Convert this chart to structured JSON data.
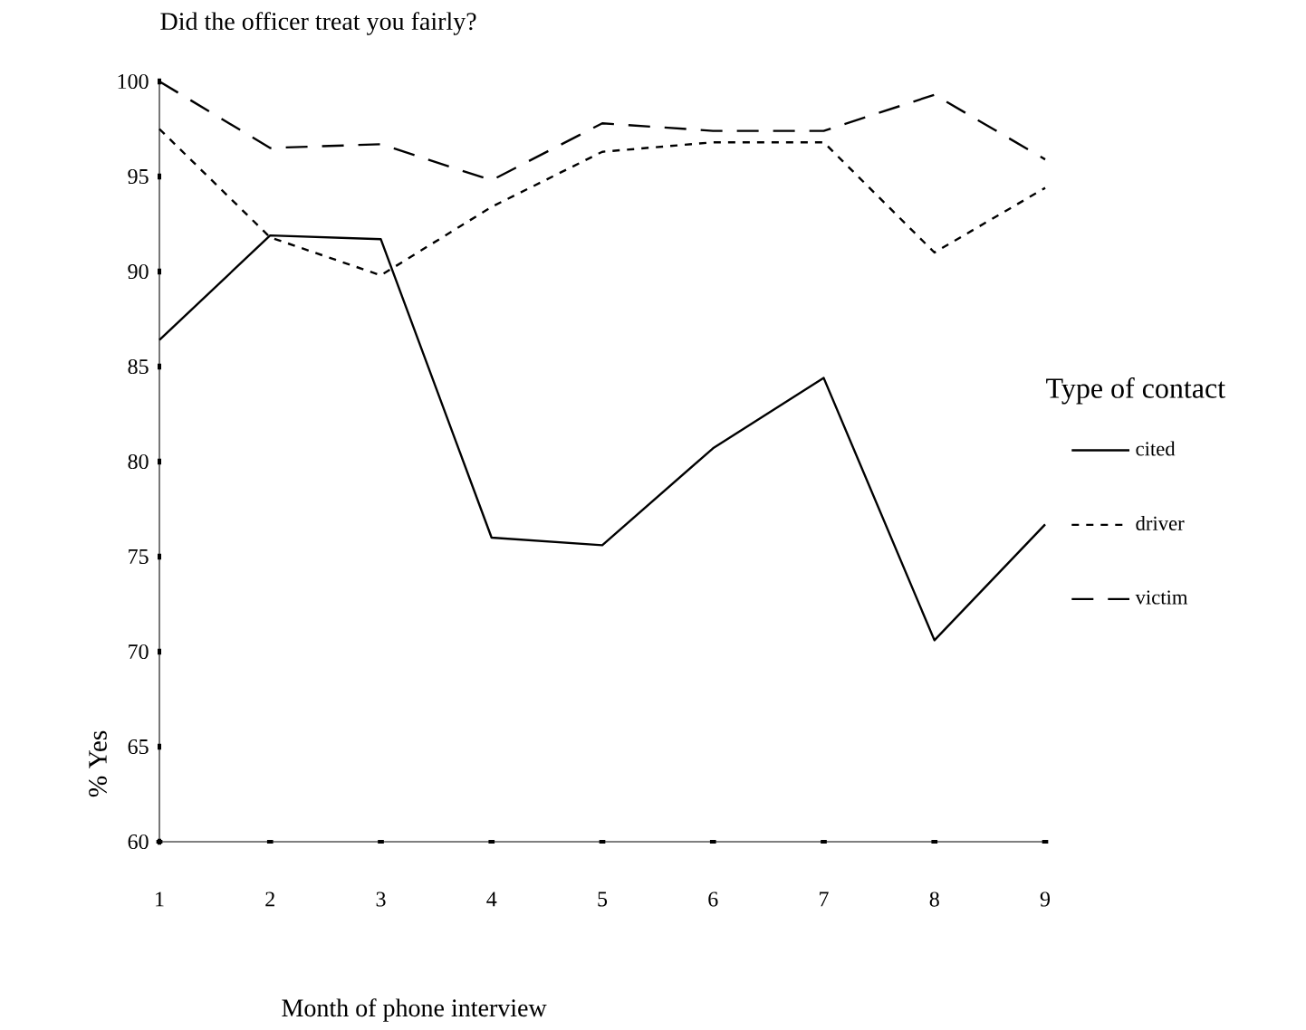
{
  "chart_data": {
    "type": "line",
    "title": "Did the officer treat you fairly?",
    "xlabel": "Month of phone interview",
    "ylabel": "% Yes",
    "legend_title": "Type of contact",
    "legend": "right",
    "x": [
      1,
      2,
      3,
      4,
      5,
      6,
      7,
      8,
      9
    ],
    "xlim": [
      1,
      9
    ],
    "xticks": [
      1,
      2,
      3,
      4,
      5,
      6,
      7,
      8,
      9
    ],
    "ylim": [
      60,
      100
    ],
    "yticks": [
      60,
      65,
      70,
      75,
      80,
      85,
      90,
      95,
      100
    ],
    "grid": false,
    "series": [
      {
        "name": "cited",
        "color": "#000000",
        "line_style": "solid",
        "values": [
          86.4,
          91.9,
          91.7,
          76.0,
          75.6,
          80.7,
          84.4,
          70.6,
          76.7
        ]
      },
      {
        "name": "driver",
        "color": "#000000",
        "line_style": "dotted",
        "values": [
          97.5,
          91.8,
          89.8,
          93.4,
          96.3,
          96.8,
          96.8,
          91.0,
          94.4
        ]
      },
      {
        "name": "victim",
        "color": "#000000",
        "line_style": "dashed",
        "values": [
          100.0,
          96.5,
          96.7,
          94.8,
          97.8,
          97.4,
          97.4,
          99.3,
          95.9
        ]
      }
    ]
  }
}
